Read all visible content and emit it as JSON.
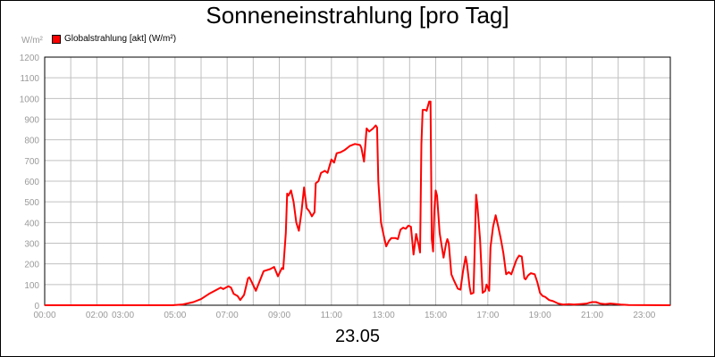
{
  "chart_data": {
    "type": "line",
    "title": "Sonneneinstrahlung [pro Tag]",
    "unit_label": "W/m²",
    "xlabel": "23.05",
    "legend": {
      "placement": "top-left",
      "entries": [
        "Globalstrahlung [akt] (W/m²)"
      ]
    },
    "grid": true,
    "x_unit": "hour",
    "xlim": [
      0,
      24
    ],
    "ylim": [
      0,
      1200
    ],
    "y_ticks": [
      "0",
      "100",
      "200",
      "300",
      "400",
      "500",
      "600",
      "700",
      "800",
      "900",
      "1000",
      "1100",
      "1200"
    ],
    "x_ticks": [
      {
        "x": 0,
        "label": "00:00"
      },
      {
        "x": 2,
        "label": "02:00"
      },
      {
        "x": 3,
        "label": "03:00"
      },
      {
        "x": 5,
        "label": "05:00"
      },
      {
        "x": 7,
        "label": "07:00"
      },
      {
        "x": 9,
        "label": "09:00"
      },
      {
        "x": 11,
        "label": "11:00"
      },
      {
        "x": 13,
        "label": "13:00"
      },
      {
        "x": 15,
        "label": "15:00"
      },
      {
        "x": 17,
        "label": "17:00"
      },
      {
        "x": 19,
        "label": "19:00"
      },
      {
        "x": 21,
        "label": "21:00"
      },
      {
        "x": 23,
        "label": "23:00"
      }
    ],
    "series": [
      {
        "name": "Globalstrahlung [akt] (W/m²)",
        "color": "#ff0000",
        "points": [
          [
            0.0,
            0
          ],
          [
            4.9,
            0
          ],
          [
            5.3,
            4
          ],
          [
            5.7,
            15
          ],
          [
            6.0,
            30
          ],
          [
            6.3,
            55
          ],
          [
            6.6,
            75
          ],
          [
            6.75,
            85
          ],
          [
            6.85,
            78
          ],
          [
            7.05,
            92
          ],
          [
            7.15,
            85
          ],
          [
            7.25,
            55
          ],
          [
            7.4,
            45
          ],
          [
            7.5,
            25
          ],
          [
            7.65,
            50
          ],
          [
            7.8,
            130
          ],
          [
            7.85,
            135
          ],
          [
            7.95,
            110
          ],
          [
            8.1,
            70
          ],
          [
            8.4,
            165
          ],
          [
            8.65,
            175
          ],
          [
            8.8,
            185
          ],
          [
            8.95,
            140
          ],
          [
            9.1,
            180
          ],
          [
            9.15,
            175
          ],
          [
            9.25,
            350
          ],
          [
            9.3,
            540
          ],
          [
            9.35,
            530
          ],
          [
            9.45,
            555
          ],
          [
            9.55,
            500
          ],
          [
            9.65,
            400
          ],
          [
            9.75,
            360
          ],
          [
            9.85,
            450
          ],
          [
            9.95,
            570
          ],
          [
            10.05,
            470
          ],
          [
            10.15,
            455
          ],
          [
            10.25,
            430
          ],
          [
            10.35,
            450
          ],
          [
            10.4,
            590
          ],
          [
            10.5,
            600
          ],
          [
            10.6,
            640
          ],
          [
            10.75,
            650
          ],
          [
            10.85,
            640
          ],
          [
            11.0,
            705
          ],
          [
            11.1,
            690
          ],
          [
            11.2,
            735
          ],
          [
            11.35,
            740
          ],
          [
            11.5,
            750
          ],
          [
            11.7,
            770
          ],
          [
            11.9,
            780
          ],
          [
            12.1,
            775
          ],
          [
            12.15,
            760
          ],
          [
            12.25,
            695
          ],
          [
            12.35,
            855
          ],
          [
            12.45,
            840
          ],
          [
            12.6,
            855
          ],
          [
            12.7,
            870
          ],
          [
            12.75,
            860
          ],
          [
            12.8,
            600
          ],
          [
            12.9,
            400
          ],
          [
            13.0,
            340
          ],
          [
            13.1,
            285
          ],
          [
            13.2,
            310
          ],
          [
            13.3,
            325
          ],
          [
            13.45,
            325
          ],
          [
            13.55,
            320
          ],
          [
            13.65,
            365
          ],
          [
            13.75,
            375
          ],
          [
            13.85,
            370
          ],
          [
            13.95,
            385
          ],
          [
            14.05,
            380
          ],
          [
            14.15,
            245
          ],
          [
            14.25,
            345
          ],
          [
            14.35,
            290
          ],
          [
            14.4,
            255
          ],
          [
            14.45,
            780
          ],
          [
            14.5,
            945
          ],
          [
            14.6,
            945
          ],
          [
            14.65,
            940
          ],
          [
            14.75,
            985
          ],
          [
            14.8,
            985
          ],
          [
            14.85,
            320
          ],
          [
            14.9,
            260
          ],
          [
            14.95,
            460
          ],
          [
            15.0,
            555
          ],
          [
            15.05,
            530
          ],
          [
            15.15,
            350
          ],
          [
            15.25,
            270
          ],
          [
            15.3,
            230
          ],
          [
            15.4,
            300
          ],
          [
            15.45,
            320
          ],
          [
            15.5,
            300
          ],
          [
            15.6,
            150
          ],
          [
            15.7,
            120
          ],
          [
            15.85,
            80
          ],
          [
            15.95,
            75
          ],
          [
            16.05,
            165
          ],
          [
            16.15,
            235
          ],
          [
            16.2,
            200
          ],
          [
            16.3,
            90
          ],
          [
            16.35,
            55
          ],
          [
            16.45,
            60
          ],
          [
            16.5,
            300
          ],
          [
            16.55,
            535
          ],
          [
            16.6,
            480
          ],
          [
            16.7,
            320
          ],
          [
            16.8,
            60
          ],
          [
            16.9,
            70
          ],
          [
            16.95,
            100
          ],
          [
            17.05,
            70
          ],
          [
            17.1,
            280
          ],
          [
            17.2,
            380
          ],
          [
            17.3,
            435
          ],
          [
            17.4,
            380
          ],
          [
            17.5,
            320
          ],
          [
            17.6,
            250
          ],
          [
            17.7,
            150
          ],
          [
            17.8,
            160
          ],
          [
            17.9,
            150
          ],
          [
            18.0,
            185
          ],
          [
            18.1,
            220
          ],
          [
            18.2,
            240
          ],
          [
            18.3,
            235
          ],
          [
            18.4,
            130
          ],
          [
            18.45,
            125
          ],
          [
            18.55,
            145
          ],
          [
            18.65,
            155
          ],
          [
            18.8,
            150
          ],
          [
            18.9,
            110
          ],
          [
            19.0,
            60
          ],
          [
            19.1,
            45
          ],
          [
            19.2,
            40
          ],
          [
            19.35,
            25
          ],
          [
            19.5,
            20
          ],
          [
            19.7,
            8
          ],
          [
            19.9,
            3
          ],
          [
            20.1,
            5
          ],
          [
            20.3,
            3
          ],
          [
            20.6,
            6
          ],
          [
            20.8,
            8
          ],
          [
            20.9,
            12
          ],
          [
            21.0,
            15
          ],
          [
            21.15,
            15
          ],
          [
            21.3,
            8
          ],
          [
            21.5,
            5
          ],
          [
            21.7,
            8
          ],
          [
            21.9,
            6
          ],
          [
            22.1,
            3
          ],
          [
            22.4,
            1
          ],
          [
            24.0,
            0
          ]
        ]
      }
    ]
  }
}
